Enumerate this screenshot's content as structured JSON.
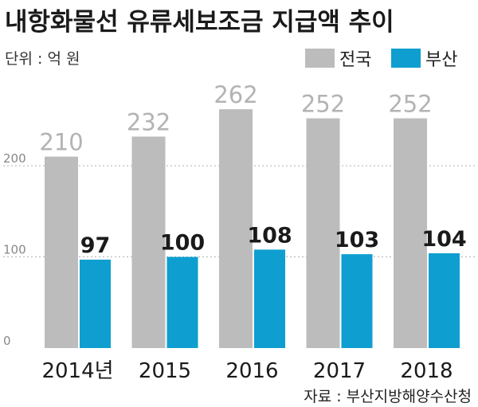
{
  "chart_data": {
    "type": "bar",
    "title": "내항화물선 유류세보조금 지급액 추이",
    "unit_label": "단위 : 억 원",
    "categories": [
      "2014년",
      "2015",
      "2016",
      "2017",
      "2018"
    ],
    "series": [
      {
        "name": "전국",
        "color": "#bcbcbc",
        "values": [
          210,
          232,
          262,
          252,
          252
        ]
      },
      {
        "name": "부산",
        "color": "#0e9fd0",
        "values": [
          97,
          100,
          108,
          103,
          104
        ]
      }
    ],
    "yticks": [
      "0",
      "100",
      "200"
    ],
    "ylim": [
      0,
      300
    ],
    "grid": "dashed",
    "legend": "top-right",
    "source": "자료 : 부산지방해양수산청"
  }
}
